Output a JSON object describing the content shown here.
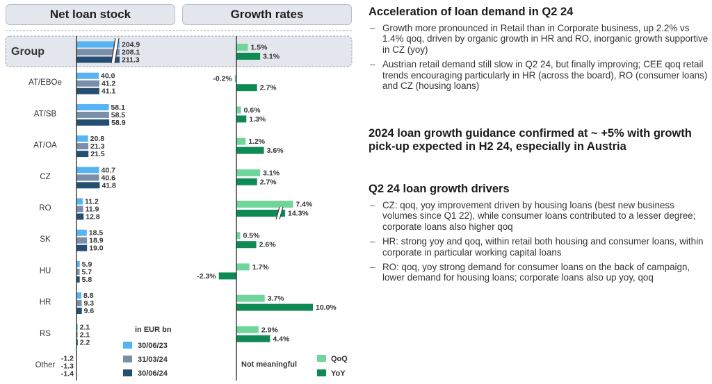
{
  "headers": {
    "net_loan_stock": "Net loan stock",
    "growth_rates": "Growth rates"
  },
  "legend": {
    "unit": "in EUR bn",
    "stock_series": [
      "30/06/23",
      "31/03/24",
      "30/06/24"
    ],
    "growth_series": [
      "QoQ",
      "YoY"
    ],
    "not_meaningful": "Not meaningful"
  },
  "colors": {
    "stock_1": "#56b4f2",
    "stock_2": "#7a8ea8",
    "stock_3": "#244f73",
    "qoq": "#6fd59a",
    "yoy": "#0e8a55",
    "group_bg": "#e3e6ec"
  },
  "chart_data": [
    {
      "type": "bar",
      "title": "Net loan stock",
      "unit": "in EUR bn",
      "categories": [
        "Group",
        "AT/EBOe",
        "AT/SB",
        "AT/OA",
        "CZ",
        "RO",
        "SK",
        "HU",
        "HR",
        "RS",
        "Other"
      ],
      "series": [
        {
          "name": "30/06/23",
          "values": [
            204.9,
            40.0,
            58.1,
            20.8,
            40.7,
            11.2,
            18.5,
            5.9,
            8.8,
            2.1,
            -1.2
          ]
        },
        {
          "name": "31/03/24",
          "values": [
            208.1,
            41.2,
            58.5,
            21.3,
            40.6,
            11.9,
            18.9,
            5.7,
            9.3,
            2.1,
            -1.3
          ]
        },
        {
          "name": "30/06/24",
          "values": [
            211.3,
            41.1,
            58.9,
            21.5,
            41.8,
            12.8,
            19.0,
            5.8,
            9.6,
            2.2,
            -1.4
          ]
        }
      ],
      "labels": [
        [
          "204.9",
          "40.0",
          "58.1",
          "20.8",
          "40.7",
          "11.2",
          "18.5",
          "5.9",
          "8.8",
          "2.1",
          "-1.2"
        ],
        [
          "208.1",
          "41.2",
          "58.5",
          "21.3",
          "40.6",
          "11.9",
          "18.9",
          "5.7",
          "9.3",
          "2.1",
          "-1.3"
        ],
        [
          "211.3",
          "41.1",
          "58.9",
          "21.5",
          "41.8",
          "12.8",
          "19.0",
          "5.8",
          "9.6",
          "2.2",
          "-1.4"
        ]
      ],
      "broken_axis": [
        "Group"
      ]
    },
    {
      "type": "bar",
      "title": "Growth rates",
      "categories": [
        "Group",
        "AT/EBOe",
        "AT/SB",
        "AT/OA",
        "CZ",
        "RO",
        "SK",
        "HU",
        "HR",
        "RS",
        "Other"
      ],
      "series": [
        {
          "name": "QoQ",
          "values": [
            1.5,
            -0.2,
            0.6,
            1.2,
            3.1,
            7.4,
            0.5,
            1.7,
            3.7,
            2.9,
            null
          ]
        },
        {
          "name": "YoY",
          "values": [
            3.1,
            2.7,
            1.3,
            3.6,
            2.7,
            14.3,
            2.6,
            -2.3,
            10.0,
            4.4,
            null
          ]
        }
      ],
      "labels": [
        [
          "1.5%",
          "-0.2%",
          "0.6%",
          "1.2%",
          "3.1%",
          "7.4%",
          "0.5%",
          "1.7%",
          "3.7%",
          "2.9%",
          ""
        ],
        [
          "3.1%",
          "2.7%",
          "1.3%",
          "3.6%",
          "2.7%",
          "14.3%",
          "2.6%",
          "-2.3%",
          "10.0%",
          "4.4%",
          ""
        ]
      ],
      "broken_axis": [
        "RO"
      ],
      "note_other": "Not meaningful"
    }
  ],
  "right_panel": {
    "sections": [
      {
        "title": "Acceleration of loan demand in Q2 24",
        "bullets": [
          "Growth more pronounced in Retail than in Corporate business, up 2.2% vs 1.4% qoq, driven by organic growth in HR and RO, inorganic growth supportive in CZ (yoy)",
          "Austrian retail demand still slow in Q2 24, but finally improving; CEE qoq retail trends encouraging particularly in HR (across the board), RO (consumer loans) and CZ (housing loans)"
        ]
      },
      {
        "title": "2024 loan growth guidance confirmed at ~ +5% with growth pick-up expected in H2 24, especially in Austria",
        "bullets": []
      },
      {
        "title": "Q2 24 loan growth drivers",
        "bullets": [
          "CZ: qoq, yoy improvement driven by housing loans (best new business volumes since Q1 22), while consumer loans contributed to a lesser degree; corporate loans also higher qoq",
          "HR: strong yoy and qoq, within retail both housing and consumer loans, within corporate in particular working capital loans",
          "RO: qoq, yoy strong demand for consumer loans on the back of campaign, lower demand for housing loans; corporate loans also up yoy, qoq"
        ]
      }
    ]
  }
}
